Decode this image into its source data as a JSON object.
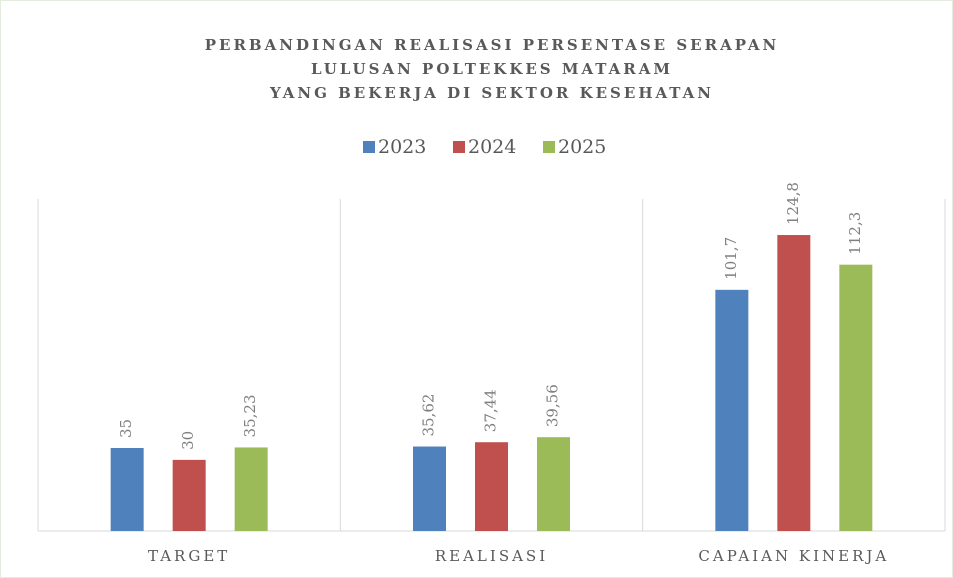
{
  "chart_data": {
    "type": "bar",
    "title": [
      "PERBANDINGAN  REALISASI PERSENTASE SERAPAN",
      "LULUSAN POLTEKKES MATARAM",
      "YANG BEKERJA DI SEKTOR KESEHATAN"
    ],
    "categories": [
      "TARGET",
      "REALISASI",
      "CAPAIAN KINERJA"
    ],
    "series": [
      {
        "name": "2023",
        "color": "#4f81bd",
        "values": [
          35,
          35.62,
          101.7
        ],
        "value_labels": [
          "35",
          "35,62",
          "101,7"
        ]
      },
      {
        "name": "2024",
        "color": "#c0504d",
        "values": [
          30,
          37.44,
          124.8
        ],
        "value_labels": [
          "30",
          "37,44",
          "124,8"
        ]
      },
      {
        "name": "2025",
        "color": "#9bbb59",
        "values": [
          35.23,
          39.56,
          112.3
        ],
        "value_labels": [
          "35,23",
          "39,56",
          "112,3"
        ]
      }
    ],
    "ylim": [
      0,
      140
    ],
    "legend": "top"
  }
}
